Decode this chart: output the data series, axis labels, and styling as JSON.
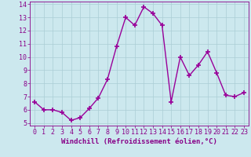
{
  "x": [
    0,
    1,
    2,
    3,
    4,
    5,
    6,
    7,
    8,
    9,
    10,
    11,
    12,
    13,
    14,
    15,
    16,
    17,
    18,
    19,
    20,
    21,
    22,
    23
  ],
  "y": [
    6.6,
    6.0,
    6.0,
    5.8,
    5.2,
    5.4,
    6.1,
    6.9,
    8.3,
    10.8,
    13.0,
    12.4,
    13.8,
    13.3,
    12.4,
    6.6,
    10.0,
    8.6,
    9.4,
    10.4,
    8.8,
    7.1,
    7.0,
    7.3
  ],
  "line_color": "#990099",
  "marker": "+",
  "marker_size": 4,
  "marker_lw": 1.2,
  "bg_color": "#cce8ee",
  "grid_color": "#aacdd5",
  "xlabel": "Windchill (Refroidissement éolien,°C)",
  "xlim": [
    -0.5,
    23.5
  ],
  "ylim": [
    4.8,
    14.2
  ],
  "yticks": [
    5,
    6,
    7,
    8,
    9,
    10,
    11,
    12,
    13,
    14
  ],
  "xticks": [
    0,
    1,
    2,
    3,
    4,
    5,
    6,
    7,
    8,
    9,
    10,
    11,
    12,
    13,
    14,
    15,
    16,
    17,
    18,
    19,
    20,
    21,
    22,
    23
  ],
  "label_color": "#880088",
  "tick_color": "#880088",
  "axis_color": "#880088",
  "xlabel_fontsize": 6.5,
  "tick_fontsize": 6.0,
  "line_width": 1.0
}
